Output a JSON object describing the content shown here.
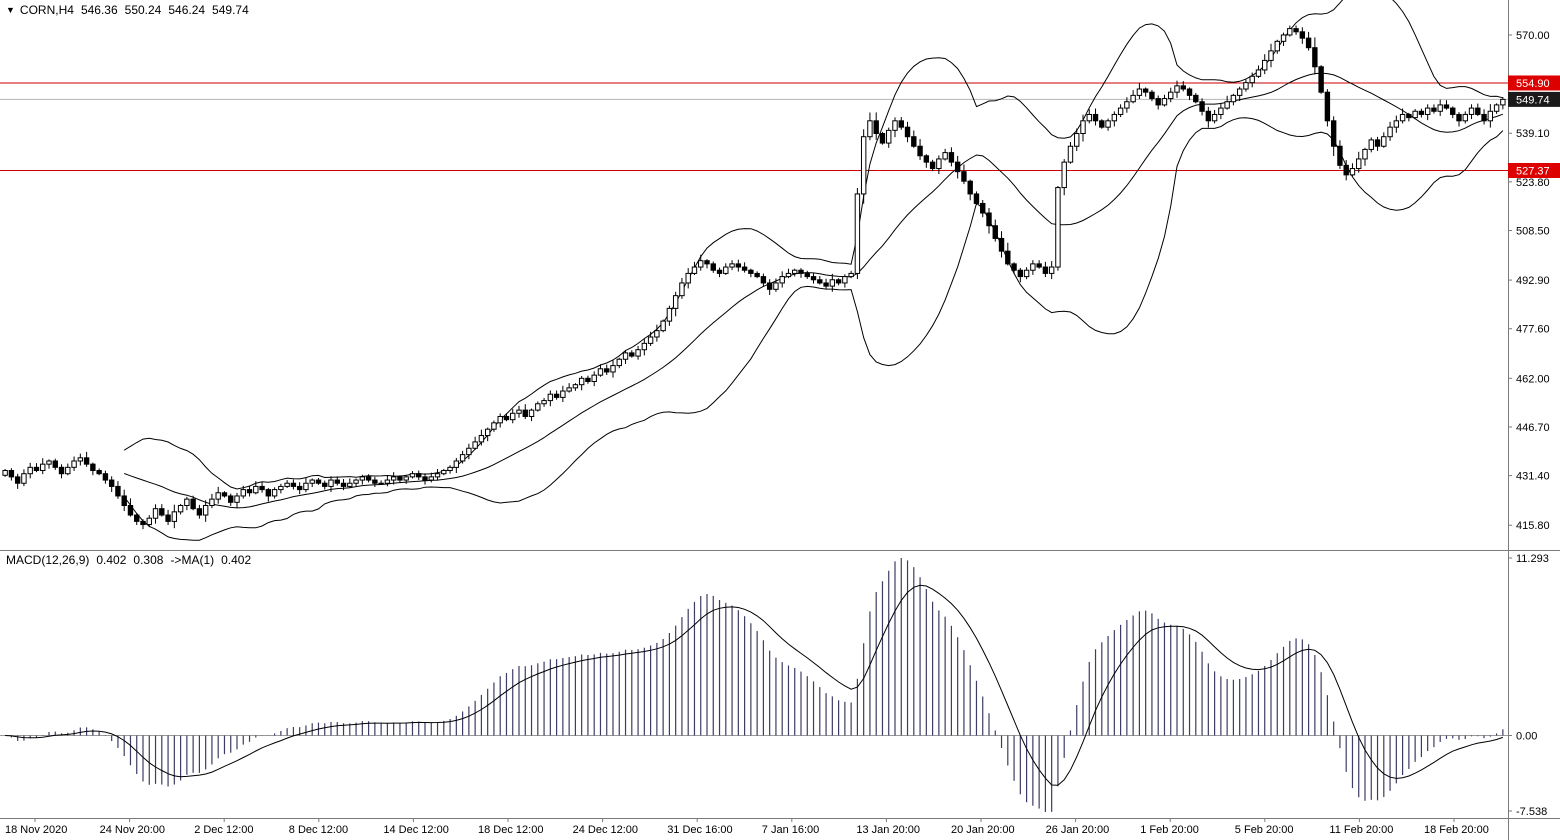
{
  "header": {
    "dropdown_icon": "▼",
    "symbol": "CORN,H4",
    "open": "546.36",
    "high": "550.24",
    "low": "546.24",
    "close": "549.74"
  },
  "macd_panel": {
    "label": "MACD(12,26,9)",
    "value_main": "0.402",
    "value_signal": "0.308",
    "ma_label": "->MA(1)",
    "ma_value": "0.402",
    "axis_labels": [
      {
        "text": "11.293",
        "anchor": "max"
      },
      {
        "text": "0.00",
        "anchor": "zero"
      },
      {
        "text": "-7.538",
        "anchor": "min"
      }
    ]
  },
  "colors": {
    "background": "#ffffff",
    "foreground": "#000000",
    "grid": "#b4b4b4",
    "panel_border": "#7a7a7a",
    "level_line": "#cc0000",
    "level_badge": "#dd0000",
    "price_badge": "#1a1a1a",
    "macd_histogram": "#3c3c64",
    "bull_candle": "#ffffff",
    "bear_candle": "#000000"
  },
  "chart_data": {
    "type": "candlestick",
    "title": "CORN,H4 with Bollinger Bands and MACD(12,26,9) subwindow",
    "symbol": "CORN",
    "timeframe": "H4",
    "ohlc_display": {
      "open": 546.36,
      "high": 550.24,
      "low": 546.24,
      "close": 549.74
    },
    "ylim": [
      408,
      581
    ],
    "closes": [
      433,
      431,
      429,
      432,
      434,
      433,
      435,
      436,
      434,
      432,
      434,
      436,
      437,
      435,
      433,
      432,
      430,
      428,
      425,
      422,
      419,
      417,
      416,
      418,
      421,
      419,
      417,
      420,
      422,
      424,
      421,
      419,
      422,
      424,
      426,
      425,
      423,
      425,
      427,
      426,
      428,
      427,
      425,
      427,
      428,
      429,
      428,
      427,
      429,
      430,
      429,
      428,
      430,
      429,
      428,
      429,
      430,
      431,
      430,
      429,
      429,
      430,
      431,
      430,
      431,
      432,
      431,
      430,
      431,
      432,
      433,
      434,
      436,
      438,
      440,
      442,
      444,
      446,
      448,
      450,
      449,
      451,
      452,
      450,
      452,
      454,
      455,
      457,
      456,
      458,
      459,
      460,
      462,
      461,
      463,
      465,
      464,
      466,
      468,
      470,
      469,
      471,
      473,
      475,
      477,
      480,
      484,
      488,
      492,
      495,
      497,
      499,
      498,
      496,
      495,
      497,
      498,
      497,
      496,
      495,
      494,
      492,
      490,
      492,
      494,
      495,
      496,
      495,
      494,
      493,
      492,
      491,
      493,
      492,
      494,
      495,
      520,
      538,
      543,
      539,
      536,
      540,
      543,
      541,
      538,
      535,
      532,
      530,
      528,
      531,
      533,
      530,
      527,
      524,
      520,
      517,
      514,
      510,
      506,
      502,
      498,
      496,
      494,
      496,
      498,
      497,
      495,
      497,
      522,
      530,
      535,
      539,
      543,
      545,
      543,
      541,
      543,
      545,
      547,
      549,
      551,
      553,
      552,
      550,
      548,
      550,
      552,
      554,
      553,
      551,
      549,
      546,
      543,
      545,
      547,
      549,
      551,
      553,
      555,
      557,
      559,
      562,
      565,
      568,
      570,
      572,
      571,
      569,
      566,
      560,
      552,
      543,
      535,
      529,
      526,
      528,
      531,
      534,
      537,
      535,
      538,
      541,
      543,
      545,
      544,
      546,
      545,
      547,
      546,
      548,
      547,
      545,
      543,
      545,
      547,
      545,
      543,
      546,
      548,
      549.74
    ],
    "indicators": {
      "bollinger": {
        "period": 20,
        "deviation": 2
      },
      "macd": {
        "fast": 12,
        "slow": 26,
        "signal": 9,
        "values_shown": [
          0.402,
          0.308,
          0.402
        ]
      }
    },
    "levels": [
      {
        "value": 554.9,
        "label": "554.90"
      },
      {
        "value": 527.37,
        "label": "527.37"
      }
    ],
    "current_price": {
      "value": 549.74,
      "label": "549.74"
    },
    "price_axis_labels": [
      {
        "text": "570.00",
        "value": 570.0
      },
      {
        "text": "539.10",
        "value": 539.1
      },
      {
        "text": "523.80",
        "value": 523.8
      },
      {
        "text": "508.50",
        "value": 508.5
      },
      {
        "text": "492.90",
        "value": 492.9
      },
      {
        "text": "477.60",
        "value": 477.6
      },
      {
        "text": "462.00",
        "value": 462.0
      },
      {
        "text": "446.70",
        "value": 446.7
      },
      {
        "text": "431.40",
        "value": 431.4
      },
      {
        "text": "415.80",
        "value": 415.8
      }
    ],
    "macd_axis_range": [
      -7.538,
      11.293
    ],
    "time_axis_labels": [
      "18 Nov 2020",
      "24 Nov 20:00",
      "2 Dec 12:00",
      "8 Dec 12:00",
      "14 Dec 12:00",
      "18 Dec 12:00",
      "24 Dec 12:00",
      "31 Dec 16:00",
      "7 Jan 16:00",
      "13 Jan 20:00",
      "20 Jan 20:00",
      "26 Jan 20:00",
      "1 Feb 20:00",
      "5 Feb 20:00",
      "11 Feb 20:00",
      "18 Feb 20:00"
    ]
  }
}
